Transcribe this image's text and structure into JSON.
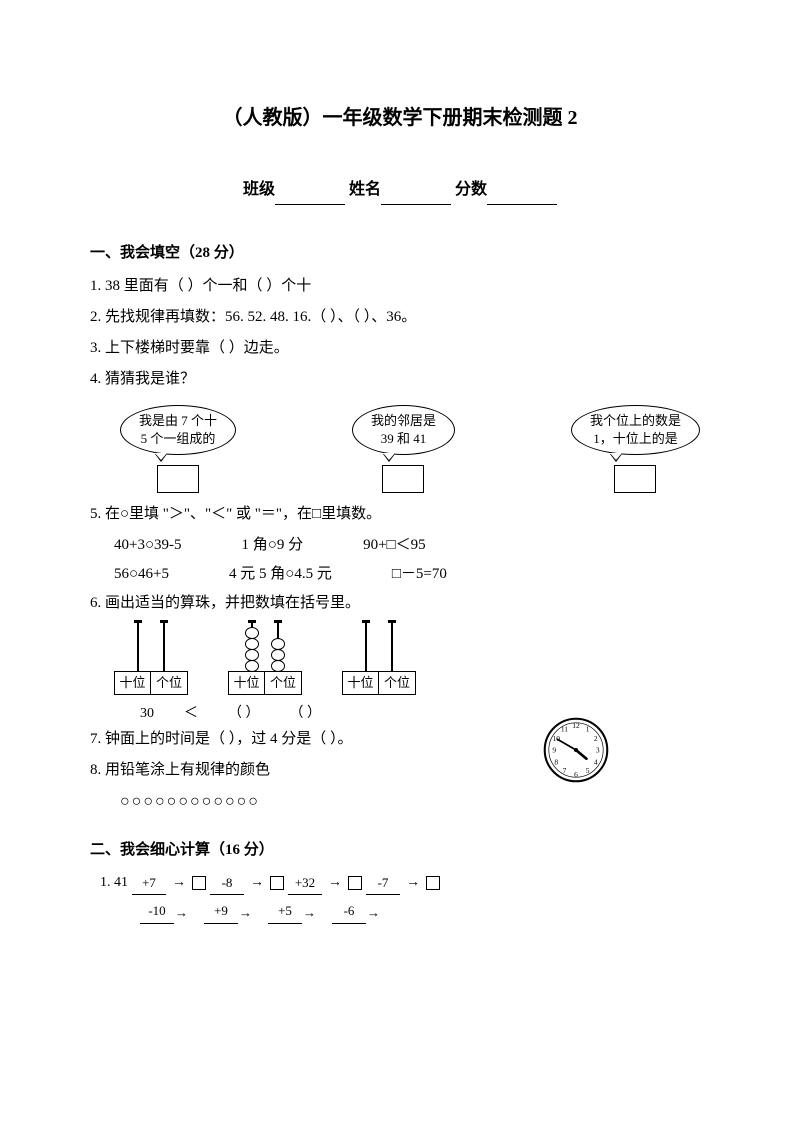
{
  "title": "（人教版）一年级数学下册期末检测题 2",
  "header": {
    "class_label": "班级",
    "name_label": "姓名",
    "score_label": "分数"
  },
  "section1": {
    "head": "一、我会填空（28 分）",
    "q1": "1. 38 里面有（  ）个一和（  ）个十",
    "q2": "2. 先找规律再填数：56. 52. 48. 16.（  ）、（  ）、36。",
    "q3": "3. 上下楼梯时要靠（   ）边走。",
    "q4": "4. 猜猜我是谁？",
    "bubbles": {
      "b1_l1": "我是由 7 个十",
      "b1_l2": "5 个一组成的",
      "b2_l1": "我的邻居是",
      "b2_l2": "39 和 41",
      "b3_l1": "我个位上的数是",
      "b3_l2": "1，十位上的是"
    },
    "q5": "5. 在○里填 \"＞\"、\"＜\" 或 \"＝\"，在□里填数。",
    "q5r1c1": "40+3○39-5",
    "q5r1c2": "1 角○9 分",
    "q5r1c3": "90+□＜95",
    "q5r2c1": "56○46+5",
    "q5r2c2": "4 元 5 角○4.5 元",
    "q5r2c3": "□－5=70",
    "q6": "6. 画出适当的算珠，并把数填在括号里。",
    "abacus_labels": {
      "tens": "十位",
      "ones": "个位"
    },
    "q6_vals": {
      "v1": "30",
      "lt": "＜",
      "v2": "（    ）",
      "v3": "（    ）"
    },
    "q7": "7. 钟面上的时间是（    ），过 4 分是（    ）。",
    "q8": "8. 用铅笔涂上有规律的颜色",
    "circles": "○○○○○○○○○○○○"
  },
  "section2": {
    "head": "二、我会细心计算（16 分）",
    "q1_prefix": "1. 41",
    "ops": [
      "+7",
      "-8",
      "+32",
      "-7"
    ],
    "ops2": [
      "-10",
      "+9",
      "+5",
      "-6"
    ]
  },
  "clock": {
    "hour_angle": 130,
    "minute_angle": 300
  }
}
